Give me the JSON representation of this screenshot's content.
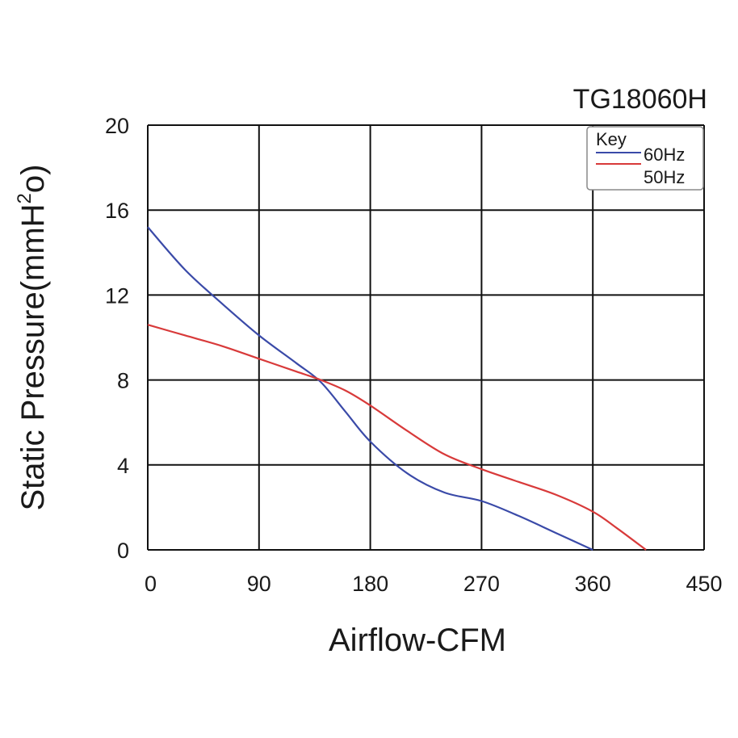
{
  "chart_data": {
    "type": "line",
    "title": "TG18060H",
    "xlabel": "Airflow-CFM",
    "ylabel_main": "Static Pressure(mmH",
    "ylabel_sup": "2",
    "ylabel_end": "o)",
    "xlim": [
      0,
      450
    ],
    "ylim": [
      0,
      20
    ],
    "x_ticks": [
      0,
      90,
      180,
      270,
      360,
      450
    ],
    "y_ticks": [
      0,
      4,
      8,
      12,
      16,
      20
    ],
    "grid": true,
    "legend_title": "Key",
    "legend_position": "top-right",
    "series": [
      {
        "name": "60Hz",
        "color": "#3a4aa8",
        "x": [
          0,
          30,
          60,
          90,
          120,
          140,
          160,
          180,
          210,
          240,
          270,
          300,
          330,
          360
        ],
        "y": [
          15.2,
          13.2,
          11.6,
          10.1,
          8.8,
          7.9,
          6.5,
          5.1,
          3.6,
          2.7,
          2.3,
          1.6,
          0.8,
          0
        ]
      },
      {
        "name": "50Hz",
        "color": "#d83a3a",
        "x": [
          0,
          30,
          60,
          90,
          120,
          140,
          160,
          180,
          210,
          240,
          270,
          300,
          330,
          360,
          380,
          403
        ],
        "y": [
          10.6,
          10.1,
          9.6,
          9.0,
          8.4,
          8.0,
          7.5,
          6.8,
          5.6,
          4.5,
          3.8,
          3.2,
          2.6,
          1.8,
          1.0,
          0
        ]
      }
    ]
  }
}
